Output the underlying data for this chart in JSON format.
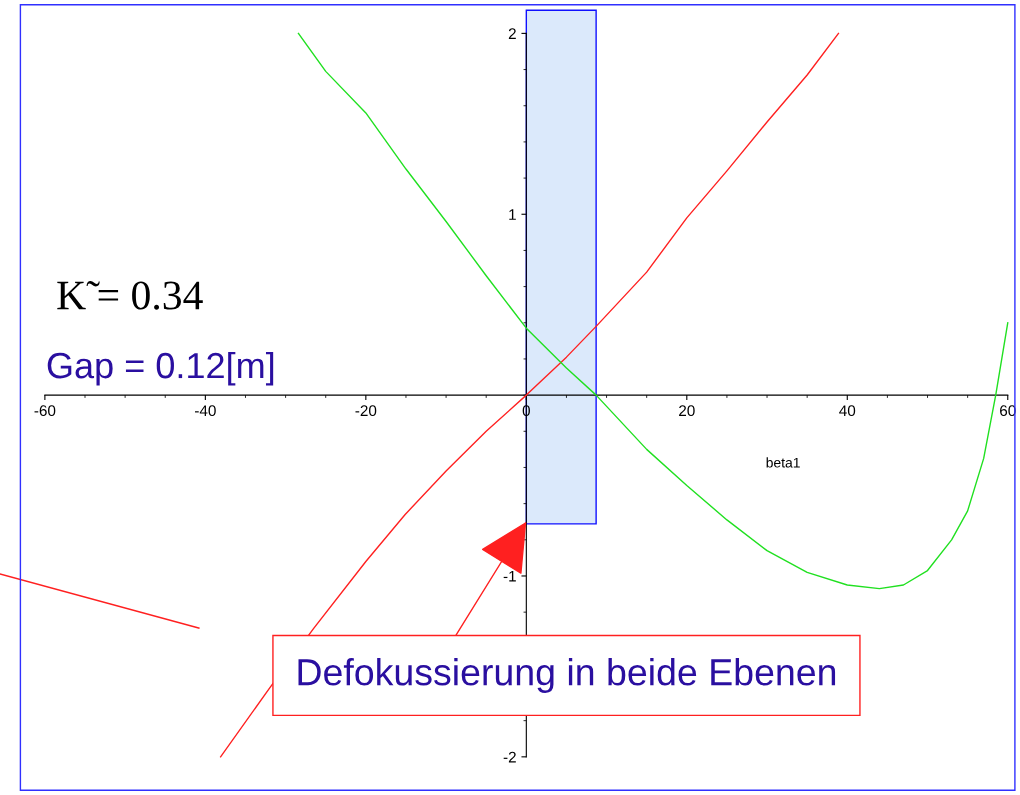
{
  "chart_data": {
    "type": "line",
    "xlabel": "beta1",
    "xlim": [
      -60,
      60
    ],
    "xticks": [
      -60,
      -40,
      -20,
      0,
      20,
      40,
      60
    ],
    "ylim": [
      -2,
      2
    ],
    "yticks": [
      -2,
      -1,
      1,
      2
    ],
    "grid": false,
    "marker": "none",
    "line_style": "solid",
    "series": [
      {
        "color": "#ff2020",
        "x": [
          -38.1,
          -32,
          -26.5,
          -20,
          -15.1,
          -10,
          -5,
          0,
          5,
          8.7,
          15,
          20,
          25,
          30,
          35,
          38.9
        ],
        "values": [
          -2,
          -1.62,
          -1.29,
          -0.92,
          -0.66,
          -0.42,
          -0.2,
          0,
          0.21,
          0.38,
          0.68,
          0.98,
          1.24,
          1.51,
          1.77,
          2
        ]
      },
      {
        "color": "#20e020",
        "x": [
          -28.4,
          -25,
          -20,
          -15,
          -10,
          -5,
          0,
          5,
          8.7,
          15,
          20,
          25,
          30,
          35,
          40,
          44,
          47,
          50,
          53,
          55,
          57,
          58.5,
          60
        ],
        "values": [
          2,
          1.79,
          1.56,
          1.25,
          0.96,
          0.66,
          0.37,
          0.15,
          0,
          -0.3,
          -0.5,
          -0.69,
          -0.86,
          -0.98,
          -1.05,
          -1.07,
          -1.05,
          -0.97,
          -0.8,
          -0.64,
          -0.35,
          0,
          0.4
        ]
      }
    ],
    "bands": [
      {
        "axis": "x",
        "from": 0,
        "to": 8.7,
        "color": "#dbe9fb"
      }
    ],
    "annotations": [
      "K̃ = 0.34",
      "Gap = 0.12[m]",
      {
        "text": "Defokussierung in beide Ebenen",
        "x": 0,
        "y": -0.7
      }
    ]
  }
}
